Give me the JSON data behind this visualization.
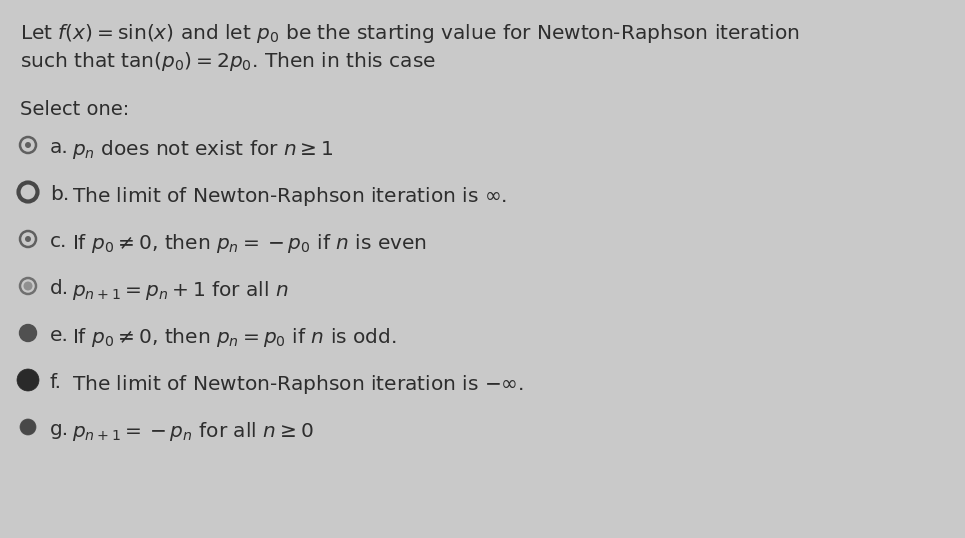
{
  "background_color": "#c9c9c9",
  "title_line1": "Let $f(x) = \\sin(x)$ and let $p_0$ be the starting value for Newton-Raphson iteration",
  "title_line2": "such that $\\tan(p_0) = 2p_0$. Then in this case",
  "select_one": "Select one:",
  "options": [
    {
      "label": "a.",
      "text_parts": [
        [
          "$p_n$",
          "italic"
        ],
        [
          " does not exist for ",
          "regular"
        ],
        [
          "$n \\geq 1$",
          "italic"
        ]
      ],
      "bullet": "open_dot"
    },
    {
      "label": "b.",
      "text_parts": [
        [
          "The limit of Newton-Raphson iteration is $\\infty$.",
          "regular"
        ]
      ],
      "bullet": "open_ring"
    },
    {
      "label": "c.",
      "text_parts": [
        [
          "If $p_0 \\neq 0$, then $p_n = -p_0$ if $n$ is even",
          "regular"
        ]
      ],
      "bullet": "open_dot"
    },
    {
      "label": "d.",
      "text_parts": [
        [
          "$p_{n+1} = p_n + 1$ for all $n$",
          "regular"
        ]
      ],
      "bullet": "half_dot"
    },
    {
      "label": "e.",
      "text_parts": [
        [
          "If $p_0 \\neq 0$, then $p_n = p_0$ if $n$ is odd.",
          "regular"
        ]
      ],
      "bullet": "filled_med"
    },
    {
      "label": "f.",
      "text_parts": [
        [
          "The limit of Newton-Raphson iteration is $-\\infty$.",
          "regular"
        ]
      ],
      "bullet": "filled_large"
    },
    {
      "label": "g.",
      "text_parts": [
        [
          "$p_{n+1} = -p_n$ for all $n \\geq 0$",
          "regular"
        ]
      ],
      "bullet": "filled_small"
    }
  ],
  "text_color": "#2e2e2e",
  "title_fontsize": 14.5,
  "option_fontsize": 14.5,
  "select_fontsize": 14.0,
  "bullet_colors": {
    "open_dot": {
      "edge": "#606060",
      "face": "none",
      "dot": "#606060"
    },
    "open_ring": {
      "edge": "#484848",
      "face": "none",
      "dot": null
    },
    "half_dot": {
      "edge": "#707070",
      "face": "none",
      "dot": "#909090"
    },
    "filled_med": {
      "edge": "#505050",
      "face": "#505050",
      "dot": null
    },
    "filled_large": {
      "edge": "#2a2a2a",
      "face": "#2a2a2a",
      "dot": null
    },
    "filled_small": {
      "edge": "#484848",
      "face": "#484848",
      "dot": null
    }
  }
}
